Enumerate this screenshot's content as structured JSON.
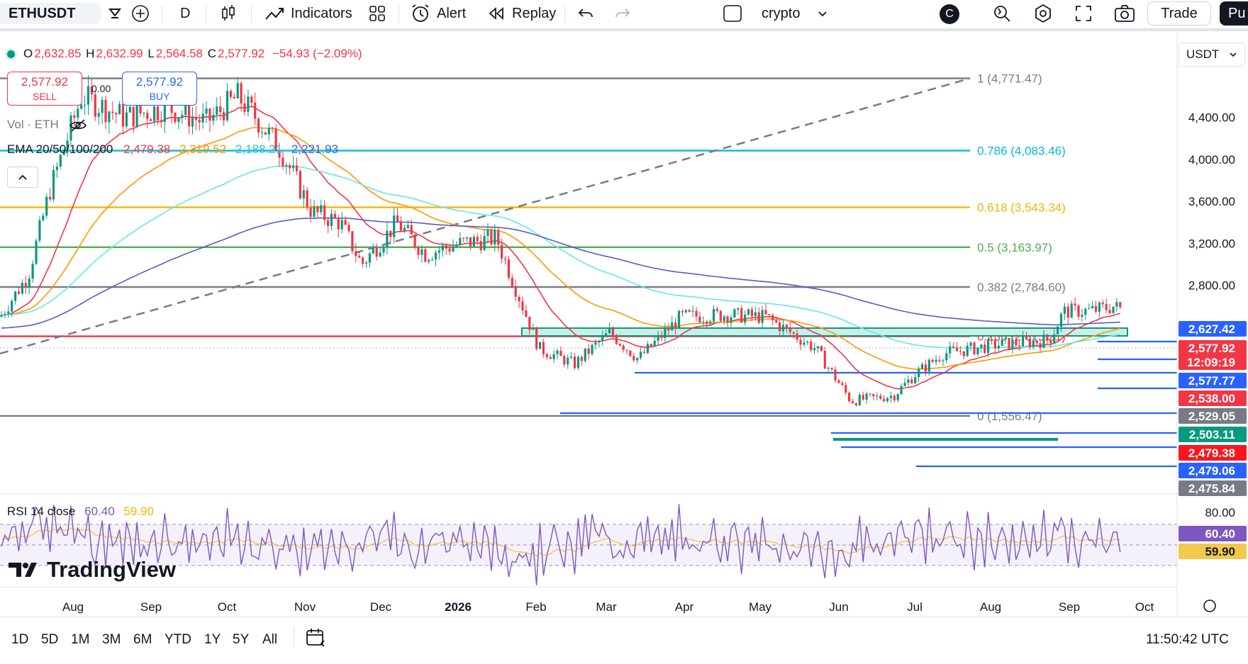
{
  "toolbar": {
    "symbol": "ETHUSDT",
    "interval": "D",
    "indicators_label": "Indicators",
    "alert_label": "Alert",
    "replay_label": "Replay",
    "layout_name": "crypto",
    "avatar_letter": "C",
    "trade_label": "Trade",
    "publish_label": "Pu"
  },
  "ohlc": {
    "o_label": "O",
    "o": "2,632.85",
    "h_label": "H",
    "h": "2,632.99",
    "l_label": "L",
    "l": "2,564.58",
    "c_label": "C",
    "c": "2,577.92",
    "change": "−54.93 (−2.09%)"
  },
  "trade_boxes": {
    "sell_price": "2,577.92",
    "sell_label": "SELL",
    "buy_price": "2,577.92",
    "buy_label": "BUY",
    "spread": "0.00"
  },
  "volume_legend": "Vol · ETH",
  "ema_legend": {
    "label": "EMA 20/50/100/200",
    "v20": "2,479.38",
    "v50": "2,319.52",
    "v100": "2,188.21",
    "v200": "2,221.93"
  },
  "currency_selector": "USDT",
  "fib_levels": [
    {
      "label": "1 (4,771.47)",
      "price": 4771.47,
      "color": "#787b86"
    },
    {
      "label": "0.786 (4,083.46)",
      "price": 4083.46,
      "color": "#00bcd4"
    },
    {
      "label": "0.618 (3,543.34)",
      "price": 3543.34,
      "color": "#f2b705"
    },
    {
      "label": "0.5 (3,163.97)",
      "price": 3163.97,
      "color": "#4caf50"
    },
    {
      "label": "0.382 (2,784.60)",
      "price": 2784.6,
      "color": "#787b86"
    },
    {
      "label": "0.236 (2,315.21)",
      "price": 2315.21,
      "color": "#f23645"
    },
    {
      "label": "0 (1,556.47)",
      "price": 1556.47,
      "color": "#787b86"
    }
  ],
  "price_axis": [
    "4,400.00",
    "4,000.00",
    "3,600.00",
    "3,200.00",
    "2,800.00"
  ],
  "price_tags": [
    {
      "text": "2,627.42",
      "bg": "#2962ff"
    },
    {
      "text": "2,577.92",
      "bg": "#f23645"
    },
    {
      "text": "12:09:19",
      "bg": "#f23645"
    },
    {
      "text": "2,577.77",
      "bg": "#2962ff"
    },
    {
      "text": "2,538.00",
      "bg": "#f23645"
    },
    {
      "text": "2,529.05",
      "bg": "#787b86"
    },
    {
      "text": "2,503.11",
      "bg": "#089981"
    },
    {
      "text": "2,479.38",
      "bg": "#f7181f"
    },
    {
      "text": "2,479.06",
      "bg": "#2962ff"
    },
    {
      "text": "2,475.84",
      "bg": "#787b86"
    }
  ],
  "rsi": {
    "label": "RSI 14 close",
    "value": "60.40",
    "ma": "59.90",
    "axis_top": "80.00"
  },
  "time_axis": [
    "Aug",
    "Sep",
    "Oct",
    "Nov",
    "Dec",
    "2026",
    "Feb",
    "Mar",
    "Apr",
    "May",
    "Jun",
    "Jul",
    "Aug",
    "Sep",
    "Oct"
  ],
  "logo_text": "TradingView",
  "timeframes": [
    "1D",
    "5D",
    "1M",
    "3M",
    "6M",
    "YTD",
    "1Y",
    "5Y",
    "All"
  ],
  "clock": "11:50:42 UTC",
  "colors": {
    "up": "#089981",
    "down": "#f23645",
    "ema20": "#f23645",
    "ema50": "#ff9800",
    "ema100": "#6ae6e6",
    "ema200": "#5b5bc8",
    "rsi_line": "#7e57c2",
    "rsi_ma": "#f2c94c"
  }
}
